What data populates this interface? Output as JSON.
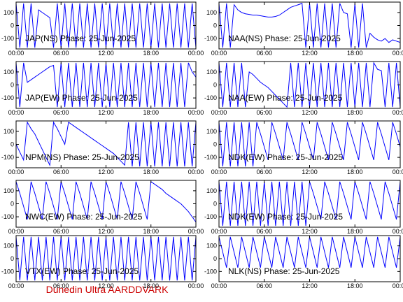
{
  "chart_data": [
    {
      "type": "line",
      "title": "JAP(NS) Phase: 25-Jun-2025",
      "color": "#0000ff",
      "xlim": [
        0,
        24
      ],
      "ylim": [
        -180,
        180
      ],
      "xticks": [
        {
          "value": 0,
          "label": "00:00"
        },
        {
          "value": 6,
          "label": "06:00"
        },
        {
          "value": 12,
          "label": "12:00"
        },
        {
          "value": 18,
          "label": "18:00"
        },
        {
          "value": 24,
          "label": "00:00"
        }
      ],
      "yticks": [
        -100,
        0,
        100
      ],
      "x": [
        0,
        0.5,
        1,
        1.5,
        2,
        2.5,
        3,
        3.5,
        4,
        4.5,
        5,
        5.5,
        6,
        6.5,
        7,
        7.5,
        8,
        8.5,
        9,
        9.5,
        10,
        10.5,
        11,
        11.5,
        12,
        12.5,
        13,
        13.5,
        14,
        14.5,
        15,
        15.5,
        16,
        16.5,
        17,
        17.5,
        18,
        18.5,
        19,
        19.5,
        20,
        20.5,
        21,
        21.5,
        22,
        22.5,
        23,
        23.5,
        24
      ],
      "values": [
        170,
        -170,
        170,
        -170,
        170,
        -170,
        120,
        100,
        80,
        60,
        -170,
        170,
        -170,
        170,
        -170,
        170,
        -170,
        170,
        -170,
        170,
        -170,
        170,
        -170,
        170,
        -170,
        170,
        -170,
        170,
        -170,
        170,
        -170,
        170,
        -170,
        170,
        -170,
        170,
        -170,
        170,
        -170,
        170,
        -170,
        170,
        -170,
        170,
        -170,
        170,
        -170,
        170,
        -170
      ]
    },
    {
      "type": "line",
      "title": "NAA(NS) Phase: 25-Jun-2025",
      "color": "#0000ff",
      "xlim": [
        0,
        24
      ],
      "ylim": [
        -180,
        180
      ],
      "xticks": [
        {
          "value": 0,
          "label": "00:00"
        },
        {
          "value": 6,
          "label": "06:00"
        },
        {
          "value": 12,
          "label": "12:00"
        },
        {
          "value": 18,
          "label": "18:00"
        },
        {
          "value": 24,
          "label": "00:00"
        }
      ],
      "yticks": [
        -100,
        0,
        100
      ],
      "x": [
        0,
        0.5,
        1,
        1.5,
        2,
        2.5,
        3,
        3.5,
        4,
        4.5,
        5,
        5.5,
        6,
        6.5,
        7,
        7.5,
        8,
        8.5,
        9,
        9.5,
        10,
        10.5,
        11,
        11.5,
        12,
        12.5,
        13,
        13.5,
        14,
        14.5,
        15,
        15.5,
        16,
        16.5,
        17,
        17.5,
        18,
        18.5,
        19,
        19.5,
        20,
        20.5,
        21,
        21.5,
        22,
        22.5,
        23,
        23.5,
        24
      ],
      "values": [
        170,
        -170,
        170,
        -170,
        160,
        120,
        100,
        90,
        85,
        80,
        80,
        75,
        70,
        65,
        65,
        70,
        80,
        100,
        120,
        140,
        150,
        160,
        170,
        -170,
        170,
        -170,
        170,
        -170,
        170,
        -170,
        170,
        -170,
        170,
        100,
        90,
        -170,
        170,
        -170,
        170,
        -170,
        -60,
        -90,
        -110,
        -120,
        -100,
        -130,
        -110,
        -120,
        -130
      ]
    },
    {
      "type": "line",
      "title": "JAP(EW) Phase: 25-Jun-2025",
      "color": "#0000ff",
      "xlim": [
        0,
        24
      ],
      "ylim": [
        -180,
        180
      ],
      "xticks": [
        {
          "value": 0,
          "label": "00:00"
        },
        {
          "value": 6,
          "label": "06:00"
        },
        {
          "value": 12,
          "label": "12:00"
        },
        {
          "value": 18,
          "label": "18:00"
        },
        {
          "value": 24,
          "label": "00:00"
        }
      ],
      "yticks": [
        -100,
        0,
        100
      ],
      "x": [
        0,
        0.5,
        1,
        1.5,
        2,
        2.5,
        3,
        3.5,
        4,
        4.5,
        5,
        5.5,
        6,
        6.5,
        7,
        7.5,
        8,
        8.5,
        9,
        9.5,
        10,
        10.5,
        11,
        11.5,
        12,
        12.5,
        13,
        13.5,
        14,
        14.5,
        15,
        15.5,
        16,
        16.5,
        17,
        17.5,
        18,
        18.5,
        19,
        19.5,
        20,
        20.5,
        21,
        21.5,
        22,
        22.5,
        23,
        23.5,
        24
      ],
      "values": [
        170,
        -170,
        170,
        20,
        40,
        60,
        80,
        100,
        120,
        140,
        150,
        -170,
        170,
        -170,
        170,
        -170,
        170,
        -170,
        170,
        -170,
        170,
        -170,
        170,
        -170,
        170,
        -170,
        170,
        -170,
        170,
        -170,
        170,
        -170,
        170,
        -170,
        170,
        -170,
        170,
        -170,
        170,
        -170,
        170,
        -170,
        170,
        -170,
        170,
        -170,
        170,
        100,
        60
      ]
    },
    {
      "type": "line",
      "title": "NAA(EW) Phase: 25-Jun-2025",
      "color": "#0000ff",
      "xlim": [
        0,
        24
      ],
      "ylim": [
        -180,
        180
      ],
      "xticks": [
        {
          "value": 0,
          "label": "00:00"
        },
        {
          "value": 6,
          "label": "06:00"
        },
        {
          "value": 12,
          "label": "12:00"
        },
        {
          "value": 18,
          "label": "18:00"
        },
        {
          "value": 24,
          "label": "00:00"
        }
      ],
      "yticks": [
        -100,
        0,
        100
      ],
      "x": [
        0,
        0.5,
        1,
        1.5,
        2,
        2.5,
        3,
        3.5,
        4,
        4.5,
        5,
        5.5,
        6,
        6.5,
        7,
        7.5,
        8,
        8.5,
        9,
        9.5,
        10,
        10.5,
        11,
        11.5,
        12,
        12.5,
        13,
        13.5,
        14,
        14.5,
        15,
        15.5,
        16,
        16.5,
        17,
        17.5,
        18,
        18.5,
        19,
        19.5,
        20,
        20.5,
        21,
        21.5,
        22,
        22.5,
        23,
        23.5,
        24
      ],
      "values": [
        170,
        -170,
        170,
        -170,
        170,
        -170,
        170,
        -170,
        100,
        80,
        50,
        20,
        0,
        -20,
        -50,
        -80,
        -110,
        -140,
        -170,
        170,
        -170,
        170,
        -170,
        170,
        -170,
        170,
        -170,
        170,
        -170,
        170,
        -170,
        170,
        -170,
        170,
        -170,
        170,
        -170,
        170,
        -170,
        170,
        -170,
        170,
        120,
        110,
        -170,
        170,
        -170,
        170,
        -170
      ]
    },
    {
      "type": "line",
      "title": "NPM(NS) Phase: 25-Jun-2025",
      "color": "#0000ff",
      "xlim": [
        0,
        24
      ],
      "ylim": [
        -180,
        180
      ],
      "xticks": [
        {
          "value": 0,
          "label": "00:00"
        },
        {
          "value": 6,
          "label": "06:00"
        },
        {
          "value": 12,
          "label": "12:00"
        },
        {
          "value": 18,
          "label": "18:00"
        },
        {
          "value": 24,
          "label": "00:00"
        }
      ],
      "yticks": [
        -100,
        0,
        100
      ],
      "x": [
        0,
        0.5,
        1,
        1.5,
        2,
        2.5,
        3,
        3.5,
        4,
        4.5,
        5,
        5.5,
        6,
        6.5,
        7,
        7.5,
        8,
        8.5,
        9,
        9.5,
        10,
        10.5,
        11,
        11.5,
        12,
        12.5,
        13,
        13.5,
        14,
        14.5,
        15,
        15.5,
        16,
        16.5,
        17,
        17.5,
        18,
        18.5,
        19,
        19.5,
        20,
        20.5,
        21,
        21.5,
        22,
        22.5,
        23,
        23.5,
        24
      ],
      "values": [
        0,
        -60,
        -120,
        170,
        120,
        80,
        20,
        -40,
        -100,
        -160,
        170,
        120,
        60,
        0,
        170,
        150,
        130,
        110,
        90,
        70,
        50,
        30,
        10,
        -10,
        -30,
        -50,
        -70,
        -100,
        -130,
        -160,
        170,
        -170,
        170,
        -170,
        170,
        -170,
        170,
        -170,
        170,
        -170,
        170,
        -170,
        170,
        -170,
        170,
        -170,
        170,
        -170,
        170
      ]
    },
    {
      "type": "line",
      "title": "NDK(EW) Phase: 25-Jun-2025",
      "color": "#0000ff",
      "xlim": [
        0,
        24
      ],
      "ylim": [
        -180,
        180
      ],
      "xticks": [
        {
          "value": 0,
          "label": "00:00"
        },
        {
          "value": 6,
          "label": "06:00"
        },
        {
          "value": 12,
          "label": "12:00"
        },
        {
          "value": 18,
          "label": "18:00"
        },
        {
          "value": 24,
          "label": "00:00"
        }
      ],
      "yticks": [
        -100,
        0,
        100
      ],
      "x": [
        0,
        0.5,
        1,
        1.5,
        2,
        2.5,
        3,
        3.5,
        4,
        4.5,
        5,
        5.5,
        6,
        6.5,
        7,
        7.5,
        8,
        8.5,
        9,
        9.5,
        10,
        10.5,
        11,
        11.5,
        12,
        12.5,
        13,
        13.5,
        14,
        14.5,
        15,
        15.5,
        16,
        16.5,
        17,
        17.5,
        18,
        18.5,
        19,
        19.5,
        20,
        20.5,
        21,
        21.5,
        22,
        22.5,
        23,
        23.5,
        24
      ],
      "values": [
        170,
        -170,
        170,
        -170,
        170,
        -170,
        170,
        -170,
        170,
        -170,
        170,
        80,
        -20,
        -120,
        170,
        80,
        -20,
        -120,
        170,
        80,
        -20,
        -120,
        170,
        80,
        -20,
        -120,
        170,
        80,
        -20,
        -120,
        170,
        80,
        -20,
        -120,
        170,
        80,
        -20,
        -120,
        170,
        80,
        -20,
        -120,
        170,
        80,
        -20,
        -120,
        170,
        80,
        -20
      ]
    },
    {
      "type": "line",
      "title": "NWC(EW) Phase: 25-Jun-2025",
      "color": "#0000ff",
      "xlim": [
        0,
        24
      ],
      "ylim": [
        -180,
        180
      ],
      "xticks": [
        {
          "value": 0,
          "label": "00:00"
        },
        {
          "value": 6,
          "label": "06:00"
        },
        {
          "value": 12,
          "label": "12:00"
        },
        {
          "value": 18,
          "label": "18:00"
        },
        {
          "value": 24,
          "label": "00:00"
        }
      ],
      "yticks": [
        -100,
        0,
        100
      ],
      "x": [
        0,
        0.5,
        1,
        1.5,
        2,
        2.5,
        3,
        3.5,
        4,
        4.5,
        5,
        5.5,
        6,
        6.5,
        7,
        7.5,
        8,
        8.5,
        9,
        9.5,
        10,
        10.5,
        11,
        11.5,
        12,
        12.5,
        13,
        13.5,
        14,
        14.5,
        15,
        15.5,
        16,
        16.5,
        17,
        17.5,
        18,
        18.5,
        19,
        19.5,
        20,
        20.5,
        21,
        21.5,
        22,
        22.5,
        23,
        23.5,
        24
      ],
      "values": [
        170,
        80,
        -20,
        -120,
        170,
        80,
        -20,
        -120,
        170,
        80,
        -20,
        -120,
        170,
        80,
        -20,
        -120,
        170,
        80,
        -20,
        -120,
        170,
        80,
        -20,
        -120,
        170,
        80,
        -20,
        -120,
        170,
        80,
        -20,
        -120,
        170,
        80,
        -20,
        -120,
        170,
        150,
        130,
        110,
        80,
        60,
        40,
        20,
        0,
        -30,
        -60,
        -100,
        -140
      ]
    },
    {
      "type": "line",
      "title": "NDK(EW) Phase: 25-Jun-2025",
      "color": "#0000ff",
      "xlim": [
        0,
        24
      ],
      "ylim": [
        -180,
        180
      ],
      "xticks": [
        {
          "value": 0,
          "label": "00:00"
        },
        {
          "value": 6,
          "label": "06:00"
        },
        {
          "value": 12,
          "label": "12:00"
        },
        {
          "value": 18,
          "label": "18:00"
        },
        {
          "value": 24,
          "label": "00:00"
        }
      ],
      "yticks": [
        -100,
        0,
        100
      ],
      "x": [
        0,
        0.5,
        1,
        1.5,
        2,
        2.5,
        3,
        3.5,
        4,
        4.5,
        5,
        5.5,
        6,
        6.5,
        7,
        7.5,
        8,
        8.5,
        9,
        9.5,
        10,
        10.5,
        11,
        11.5,
        12,
        12.5,
        13,
        13.5,
        14,
        14.5,
        15,
        15.5,
        16,
        16.5,
        17,
        17.5,
        18,
        18.5,
        19,
        19.5,
        20,
        20.5,
        21,
        21.5,
        22,
        22.5,
        23,
        23.5,
        24
      ],
      "values": [
        170,
        -170,
        170,
        -170,
        170,
        -170,
        170,
        -170,
        170,
        -170,
        170,
        -170,
        170,
        -170,
        170,
        -170,
        170,
        -170,
        170,
        -170,
        170,
        -170,
        170,
        -170,
        170,
        80,
        -20,
        -120,
        170,
        80,
        -20,
        -120,
        170,
        80,
        -20,
        -120,
        170,
        80,
        -20,
        -120,
        170,
        80,
        -20,
        -120,
        170,
        80,
        -20,
        -120,
        170
      ]
    },
    {
      "type": "line",
      "title": "VTX(EW) Phase: 25-Jun-2025",
      "color": "#0000ff",
      "xlim": [
        0,
        24
      ],
      "ylim": [
        -180,
        180
      ],
      "xticks": [
        {
          "value": 0,
          "label": "00:00"
        },
        {
          "value": 6,
          "label": "06:00"
        },
        {
          "value": 12,
          "label": "12:00"
        },
        {
          "value": 18,
          "label": "18:00"
        },
        {
          "value": 24,
          "label": "00:00"
        }
      ],
      "yticks": [
        -100,
        0,
        100
      ],
      "x": [
        0,
        0.5,
        1,
        1.5,
        2,
        2.5,
        3,
        3.5,
        4,
        4.5,
        5,
        5.5,
        6,
        6.5,
        7,
        7.5,
        8,
        8.5,
        9,
        9.5,
        10,
        10.5,
        11,
        11.5,
        12,
        12.5,
        13,
        13.5,
        14,
        14.5,
        15,
        15.5,
        16,
        16.5,
        17,
        17.5,
        18,
        18.5,
        19,
        19.5,
        20,
        20.5,
        21,
        21.5,
        22,
        22.5,
        23,
        23.5,
        24
      ],
      "values": [
        170,
        -170,
        170,
        -170,
        170,
        -170,
        170,
        -170,
        170,
        -170,
        170,
        -170,
        170,
        -170,
        170,
        -170,
        170,
        -170,
        170,
        -170,
        170,
        -170,
        170,
        -170,
        170,
        -170,
        170,
        -170,
        170,
        -170,
        170,
        -170,
        170,
        -170,
        170,
        -170,
        170,
        -170,
        170,
        -170,
        170,
        -170,
        170,
        -170,
        170,
        -170,
        170,
        -170,
        170
      ]
    },
    {
      "type": "line",
      "title": "NLK(NS) Phase: 25-Jun-2025",
      "color": "#0000ff",
      "xlim": [
        0,
        24
      ],
      "ylim": [
        -180,
        180
      ],
      "xticks": [
        {
          "value": 0,
          "label": "00:00"
        },
        {
          "value": 6,
          "label": "06:00"
        },
        {
          "value": 12,
          "label": "12:00"
        },
        {
          "value": 18,
          "label": "18:00"
        },
        {
          "value": 24,
          "label": "00:00"
        }
      ],
      "yticks": [
        -100,
        0,
        100
      ],
      "x": [
        0,
        0.5,
        1,
        1.5,
        2,
        2.5,
        3,
        3.5,
        4,
        4.5,
        5,
        5.5,
        6,
        6.5,
        7,
        7.5,
        8,
        8.5,
        9,
        9.5,
        10,
        10.5,
        11,
        11.5,
        12,
        12.5,
        13,
        13.5,
        14,
        14.5,
        15,
        15.5,
        16,
        16.5,
        17,
        17.5,
        18,
        18.5,
        19,
        19.5,
        20,
        20.5,
        21,
        21.5,
        22,
        22.5,
        23,
        23.5,
        24
      ],
      "values": [
        170,
        50,
        -70,
        170,
        50,
        -70,
        170,
        50,
        -70,
        170,
        50,
        -70,
        170,
        50,
        -70,
        170,
        50,
        -70,
        170,
        50,
        -70,
        170,
        50,
        -70,
        170,
        50,
        -70,
        170,
        50,
        -70,
        170,
        50,
        -70,
        170,
        50,
        -70,
        170,
        50,
        -70,
        170,
        50,
        -70,
        170,
        50,
        -70,
        170,
        50,
        -70,
        170
      ]
    }
  ],
  "footer": "Dunedin Ultra AARDDVARK"
}
